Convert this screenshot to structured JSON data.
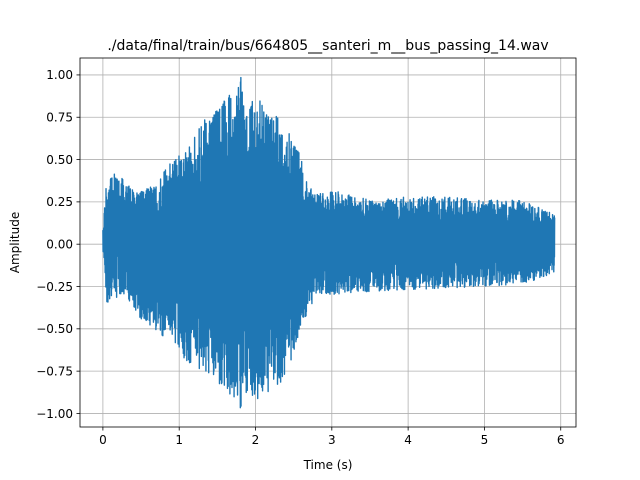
{
  "chart_data": {
    "type": "line",
    "title": "./data/final/train/bus/664805__santeri_m__bus_passing_14.wav",
    "xlabel": "Time (s)",
    "ylabel": "Amplitude",
    "xlim": [
      -0.3,
      6.2
    ],
    "ylim": [
      -1.08,
      1.1
    ],
    "xticks": [
      0,
      1,
      2,
      3,
      4,
      5,
      6
    ],
    "xtick_labels": [
      "0",
      "1",
      "2",
      "3",
      "4",
      "5",
      "6"
    ],
    "yticks": [
      -1.0,
      -0.75,
      -0.5,
      -0.25,
      0.0,
      0.25,
      0.5,
      0.75,
      1.0
    ],
    "ytick_labels": [
      "−1.00",
      "−0.75",
      "−0.50",
      "−0.25",
      "0.00",
      "0.25",
      "0.50",
      "0.75",
      "1.00"
    ],
    "grid": true,
    "series": [
      {
        "color": "#1f77b4",
        "duration": 5.92,
        "envelope": {
          "t": [
            0.0,
            0.05,
            0.1,
            0.3,
            0.5,
            0.7,
            0.9,
            1.1,
            1.3,
            1.5,
            1.7,
            1.8,
            1.9,
            2.0,
            2.2,
            2.4,
            2.6,
            2.75,
            2.85,
            3.0,
            3.5,
            4.0,
            4.5,
            5.0,
            5.5,
            5.9
          ],
          "max": [
            0.1,
            0.38,
            0.44,
            0.38,
            0.32,
            0.35,
            0.5,
            0.55,
            0.72,
            0.82,
            0.9,
            1.0,
            0.86,
            0.88,
            0.78,
            0.72,
            0.52,
            0.32,
            0.3,
            0.32,
            0.26,
            0.28,
            0.28,
            0.26,
            0.26,
            0.18
          ],
          "min": [
            -0.06,
            -0.35,
            -0.34,
            -0.3,
            -0.45,
            -0.55,
            -0.55,
            -0.7,
            -0.75,
            -0.82,
            -0.92,
            -0.99,
            -0.88,
            -0.97,
            -0.86,
            -0.8,
            -0.5,
            -0.34,
            -0.3,
            -0.3,
            -0.28,
            -0.27,
            -0.26,
            -0.25,
            -0.24,
            -0.17
          ]
        }
      }
    ]
  }
}
